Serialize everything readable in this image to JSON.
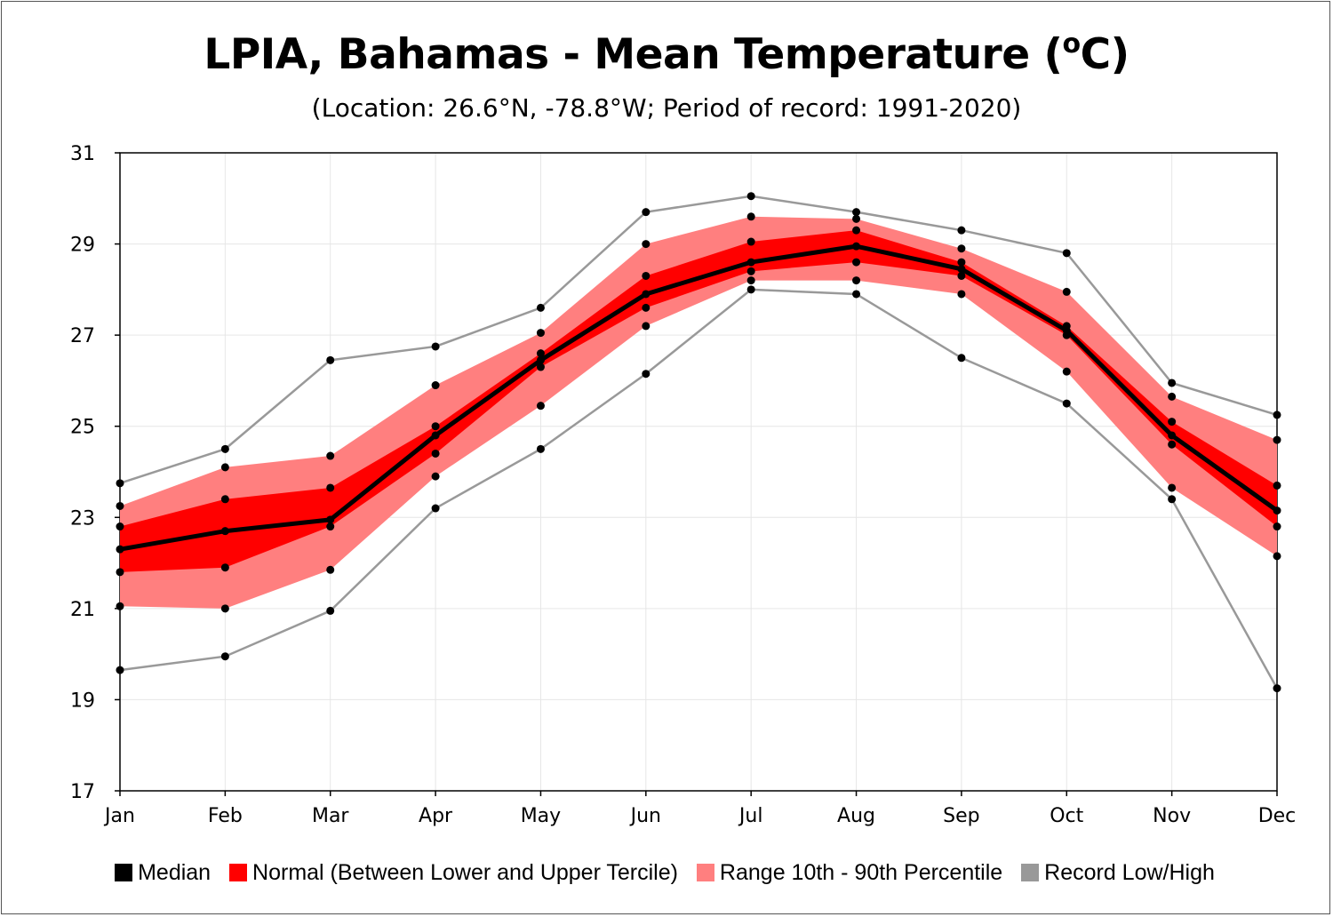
{
  "chart_data": {
    "type": "area",
    "title_main": "LPIA, Bahamas - Mean Temperature (",
    "title_sup": "o",
    "title_end": "C)",
    "subtitle": "(Location: 26.6°N, -78.8°W; Period of record: 1991-2020)",
    "categories": [
      "Jan",
      "Feb",
      "Mar",
      "Apr",
      "May",
      "Jun",
      "Jul",
      "Aug",
      "Sep",
      "Oct",
      "Nov",
      "Dec"
    ],
    "ylim": [
      17,
      31
    ],
    "yticks": [
      "17",
      "19",
      "21",
      "23",
      "25",
      "27",
      "29",
      "31"
    ],
    "grid": true,
    "legend_position": "bottom",
    "series": [
      {
        "name": "Median",
        "color": "#000000",
        "values": [
          22.3,
          22.7,
          22.95,
          24.8,
          26.45,
          27.9,
          28.6,
          28.95,
          28.45,
          27.1,
          24.8,
          23.15
        ]
      },
      {
        "name": "Normal (Between Lower and Upper Tercile)",
        "color": "#ff0000",
        "lower": [
          21.8,
          21.9,
          22.8,
          24.4,
          26.3,
          27.6,
          28.4,
          28.6,
          28.3,
          27.0,
          24.6,
          22.8
        ],
        "upper": [
          22.8,
          23.4,
          23.65,
          25.0,
          26.6,
          28.3,
          29.05,
          29.3,
          28.6,
          27.2,
          25.1,
          23.7
        ]
      },
      {
        "name": "Range 10th - 90th Percentile",
        "color": "#ff7f7f",
        "lower": [
          21.05,
          21.0,
          21.85,
          23.9,
          25.45,
          27.2,
          28.2,
          28.2,
          27.9,
          26.2,
          23.65,
          22.15
        ],
        "upper": [
          23.25,
          24.1,
          24.35,
          25.9,
          27.05,
          29.0,
          29.6,
          29.55,
          28.9,
          27.95,
          25.65,
          24.7
        ]
      },
      {
        "name": "Record Low/High",
        "color": "#999999",
        "lower": [
          19.65,
          19.95,
          20.95,
          23.2,
          24.5,
          26.15,
          28.0,
          27.9,
          26.5,
          25.5,
          23.4,
          19.25
        ],
        "upper": [
          23.75,
          24.5,
          26.45,
          26.75,
          27.6,
          29.7,
          30.05,
          29.7,
          29.3,
          28.8,
          25.95,
          25.25
        ]
      }
    ]
  }
}
